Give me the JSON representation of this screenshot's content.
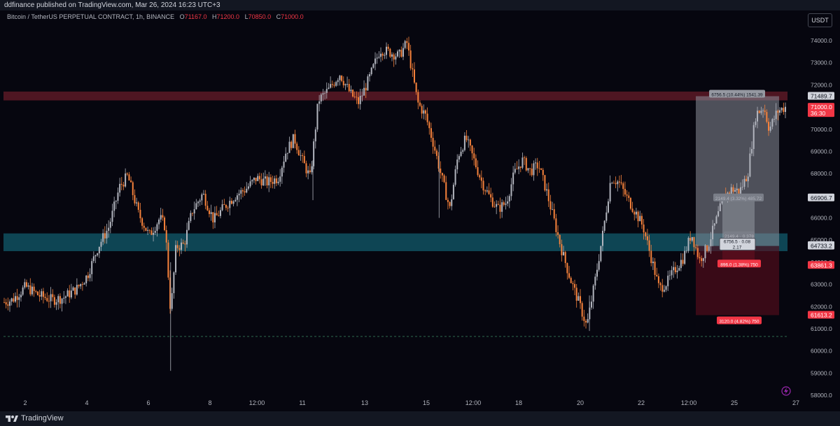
{
  "header": {
    "publisher": "ddfinance published on TradingView.com, Mar 26, 2024 16:23 UTC+3"
  },
  "legend": {
    "symbol": "Bitcoin / TetherUS PERPETUAL CONTRACT, 1h, BINANCE",
    "o_label": "O",
    "o": "71167.0",
    "h_label": "H",
    "h": "71200.0",
    "l_label": "L",
    "l": "70850.0",
    "c_label": "C",
    "c": "71000.0"
  },
  "currency_button": "USDT",
  "footer": {
    "brand": "TradingView"
  },
  "colors": {
    "background": "#06060f",
    "up": "#b2b5be",
    "down": "#f7823b",
    "resistance_zone": "#5c1a26",
    "support_zone": "#0f4c5c",
    "price_tag": "#f23645"
  },
  "chart_data": {
    "type": "candlestick",
    "y_axis": {
      "min": 58000,
      "max": 74000,
      "ticks": [
        "58000.0",
        "59000.0",
        "60000.0",
        "61000.0",
        "62000.0",
        "63000.0",
        "64000.0",
        "65000.0",
        "66000.0",
        "67000.0",
        "68000.0",
        "69000.0",
        "70000.0",
        "72000.0",
        "73000.0",
        "74000.0"
      ]
    },
    "x_axis": {
      "ticks": [
        "2",
        "4",
        "6",
        "8",
        "12:00",
        "11",
        "13",
        "15",
        "12:00",
        "18",
        "20",
        "22",
        "12:00",
        "25",
        "27"
      ]
    },
    "price_path": [
      [
        0,
        62200
      ],
      [
        0.3,
        62300
      ],
      [
        0.8,
        62900
      ],
      [
        1.3,
        62500
      ],
      [
        1.8,
        62300
      ],
      [
        2.2,
        62400
      ],
      [
        2.7,
        62800
      ],
      [
        3.1,
        63400
      ],
      [
        3.5,
        64700
      ],
      [
        3.9,
        65600
      ],
      [
        4.3,
        67400
      ],
      [
        4.6,
        67900
      ],
      [
        5.0,
        66200
      ],
      [
        5.4,
        65200
      ],
      [
        5.8,
        66000
      ],
      [
        6.0,
        65600
      ],
      [
        6.2,
        61700
      ],
      [
        6.4,
        64700
      ],
      [
        6.7,
        64800
      ],
      [
        7.0,
        66300
      ],
      [
        7.4,
        67100
      ],
      [
        7.8,
        65900
      ],
      [
        8.2,
        66500
      ],
      [
        8.6,
        67000
      ],
      [
        9.0,
        67300
      ],
      [
        9.4,
        67800
      ],
      [
        9.8,
        67600
      ],
      [
        10.2,
        67800
      ],
      [
        10.5,
        69000
      ],
      [
        10.8,
        69600
      ],
      [
        11.1,
        68600
      ],
      [
        11.4,
        67800
      ],
      [
        11.7,
        71300
      ],
      [
        12.1,
        71800
      ],
      [
        12.5,
        72500
      ],
      [
        12.9,
        71600
      ],
      [
        13.2,
        71200
      ],
      [
        13.6,
        72300
      ],
      [
        14.0,
        73600
      ],
      [
        14.3,
        73500
      ],
      [
        14.7,
        73300
      ],
      [
        15.0,
        73900
      ],
      [
        15.4,
        71200
      ],
      [
        15.7,
        70600
      ],
      [
        16.0,
        69300
      ],
      [
        16.3,
        67800
      ],
      [
        16.6,
        66400
      ],
      [
        16.9,
        68800
      ],
      [
        17.2,
        69600
      ],
      [
        17.5,
        68600
      ],
      [
        17.8,
        67600
      ],
      [
        18.1,
        66900
      ],
      [
        18.4,
        66400
      ],
      [
        18.7,
        66700
      ],
      [
        19.0,
        68000
      ],
      [
        19.3,
        68600
      ],
      [
        19.6,
        68100
      ],
      [
        19.9,
        68400
      ],
      [
        20.2,
        67200
      ],
      [
        20.5,
        65800
      ],
      [
        20.8,
        64400
      ],
      [
        21.1,
        63200
      ],
      [
        21.4,
        62200
      ],
      [
        21.7,
        61100
      ],
      [
        22.0,
        63100
      ],
      [
        22.3,
        65300
      ],
      [
        22.6,
        67800
      ],
      [
        22.9,
        67600
      ],
      [
        23.2,
        66900
      ],
      [
        23.5,
        66300
      ],
      [
        23.8,
        65600
      ],
      [
        24.1,
        64200
      ],
      [
        24.4,
        62800
      ],
      [
        24.7,
        63100
      ],
      [
        25.0,
        63700
      ],
      [
        25.3,
        64200
      ],
      [
        25.6,
        65300
      ],
      [
        25.9,
        64100
      ],
      [
        26.2,
        64700
      ],
      [
        26.5,
        65800
      ],
      [
        26.8,
        66900
      ],
      [
        27.1,
        67300
      ],
      [
        27.4,
        67200
      ],
      [
        27.7,
        68000
      ],
      [
        28.0,
        70700
      ],
      [
        28.3,
        71000
      ],
      [
        28.5,
        70000
      ],
      [
        28.8,
        70800
      ],
      [
        29.1,
        71000
      ]
    ],
    "zones": [
      {
        "name": "resistance",
        "from": 71300,
        "to": 71700
      },
      {
        "name": "support",
        "from": 64500,
        "to": 65300
      }
    ],
    "dashed_level": 60650,
    "price_labels": [
      {
        "value": 71489.7,
        "text": "71489.7",
        "style": "neutral"
      },
      {
        "value": 71000.0,
        "text": "71000.0",
        "sub": "36:30",
        "style": "current"
      },
      {
        "value": 66906.7,
        "text": "66906.7",
        "style": "neutral"
      },
      {
        "value": 64757.3,
        "text": "64757.3",
        "style": "neutral"
      },
      {
        "value": 64733.2,
        "text": "64733.2",
        "style": "neutral"
      },
      {
        "value": 63861.3,
        "text": "63861.3",
        "style": "red"
      },
      {
        "value": 61613.2,
        "text": "61613.2",
        "style": "red"
      }
    ],
    "position_big": {
      "entry": 64733.2,
      "target": 71489.7,
      "stop": 61613.2,
      "target_label": "6756.5 (10.44%) 1541.39",
      "stop_label": "3120.0 (4.82%) 750"
    },
    "position_small": {
      "entry": 64757.3,
      "target": 66906.7,
      "stop": 63861.3,
      "target_label": "2149.4 (3.32%) 485.72",
      "mid_label": "2149.4 · 0.378",
      "stop_label": "896.0 (1.38%) 750"
    },
    "entry_box": {
      "line1": "6756.5 · 0.08",
      "line2": "2.17"
    }
  }
}
